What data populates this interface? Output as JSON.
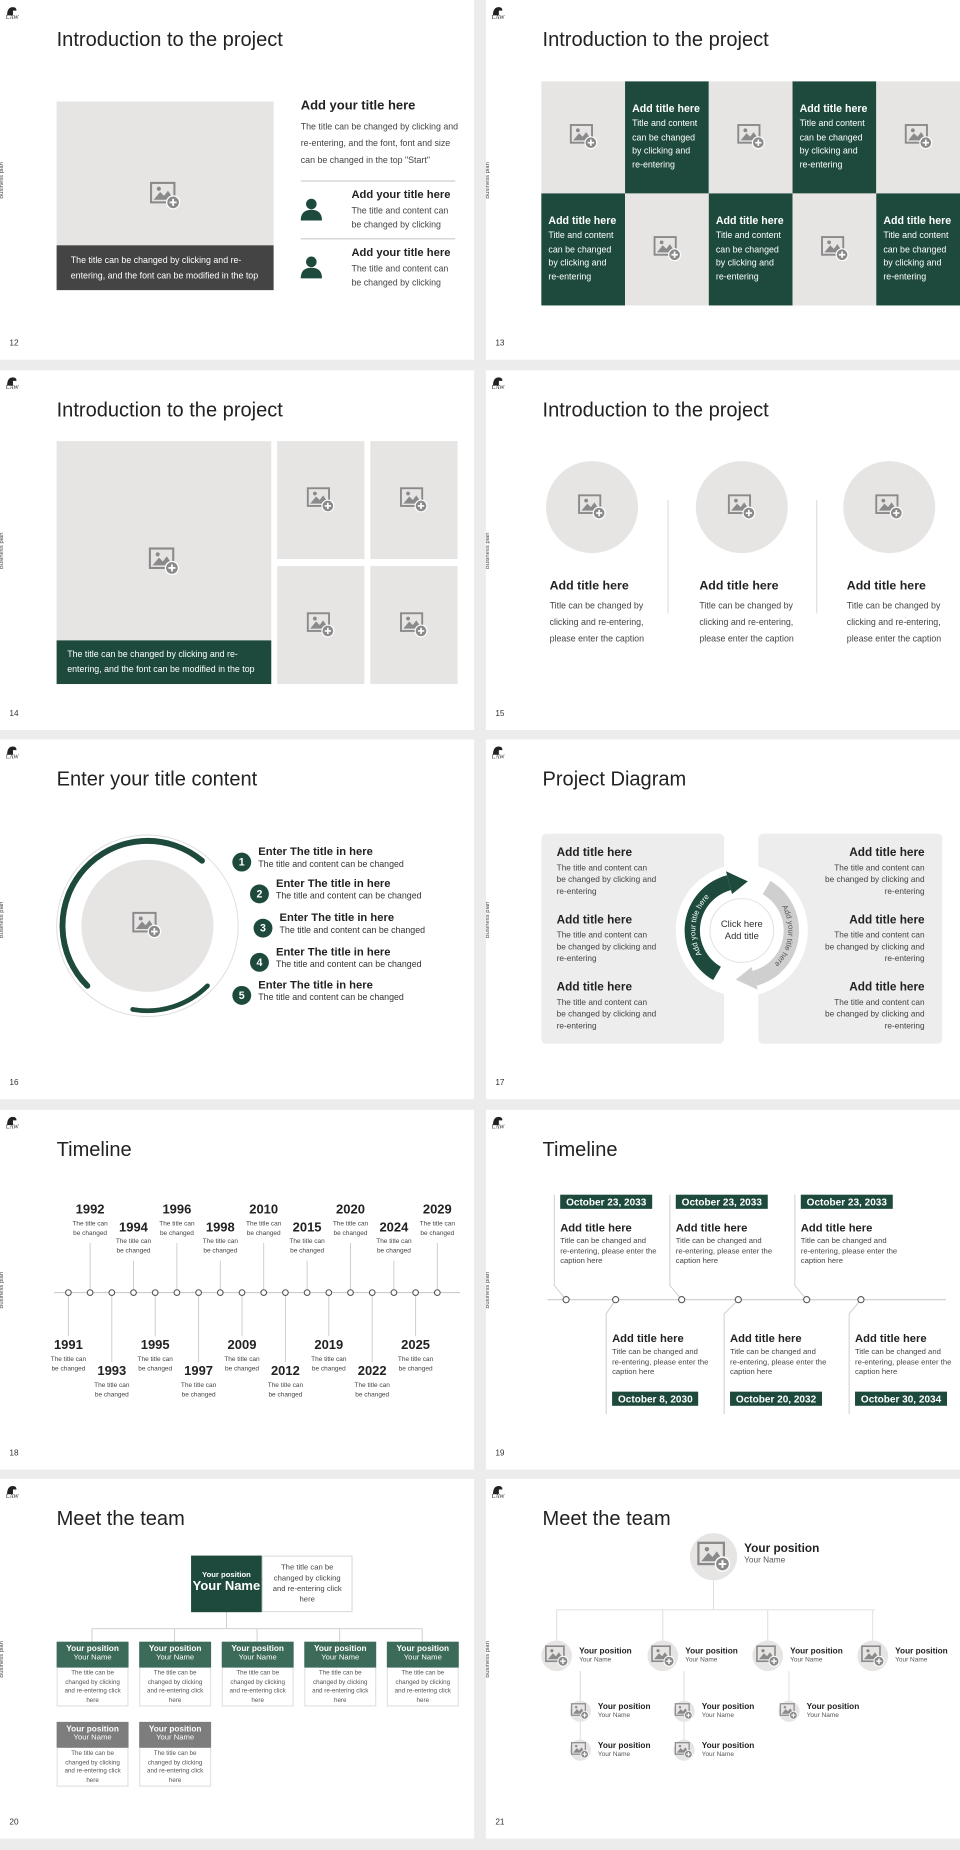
{
  "logo": "LAW",
  "side_label": "Business plan",
  "slides": [
    {
      "type": "intro_split",
      "number": "12",
      "title": "Introduction to the project",
      "caption": "The title can be changed by clicking and re-entering, and the font can be modified in the top",
      "heading": "Add your title here",
      "text": "The title can be changed by clicking and re-entering, and the font, font and size can be changed in the top \"Start\"",
      "items": [
        {
          "title": "Add your title here",
          "text": "The title and content can be changed by clicking"
        },
        {
          "title": "Add your title here",
          "text": "The title and content can be changed by clicking"
        }
      ]
    },
    {
      "type": "tiles",
      "number": "13",
      "title": "Introduction to the project",
      "tiles": [
        {
          "title": "Add title here",
          "text": "Title and content can be changed by clicking and re-entering"
        },
        {
          "title": "Add title here",
          "text": "Title and content can be changed by clicking and re-entering"
        },
        {
          "title": "Add title here",
          "text": "Title and content can be changed by clicking and re-entering"
        },
        {
          "title": "Add title here",
          "text": "Title and content can be changed by clicking and re-entering"
        },
        {
          "title": "Add title here",
          "text": "Title and content can be changed by clicking and re-entering"
        }
      ]
    },
    {
      "type": "gallery",
      "number": "14",
      "title": "Introduction to the project",
      "caption": "The title can be changed by clicking and re-entering, and the font can be modified in the top"
    },
    {
      "type": "circles",
      "number": "15",
      "title": "Introduction to the project",
      "columns": [
        {
          "title": "Add title here",
          "text": "Title can be changed by clicking and re-entering, please enter the caption"
        },
        {
          "title": "Add title here",
          "text": "Title can be changed by clicking and re-entering, please enter the caption"
        },
        {
          "title": "Add title here",
          "text": "Title can be changed by clicking and re-entering, please enter the caption"
        }
      ]
    },
    {
      "type": "numbered",
      "number": "16",
      "title": "Enter your title content",
      "items": [
        {
          "n": "1",
          "title": "Enter The title in here",
          "text": "The title and content can be changed"
        },
        {
          "n": "2",
          "title": "Enter The title in here",
          "text": "The title and content can be changed"
        },
        {
          "n": "3",
          "title": "Enter The title in here",
          "text": "The title and content can be changed"
        },
        {
          "n": "4",
          "title": "Enter The title in here",
          "text": "The title and content can be changed"
        },
        {
          "n": "5",
          "title": "Enter The title in here",
          "text": "The title and content can be changed"
        }
      ]
    },
    {
      "type": "cycle",
      "number": "17",
      "title": "Project Diagram",
      "center": "Click here Add title",
      "arc_left": "Add your title here",
      "arc_right": "Add your title here",
      "left": [
        {
          "title": "Add title here",
          "text": "The title and content can be changed by clicking and re-entering"
        },
        {
          "title": "Add title here",
          "text": "The title and content can be changed by clicking and re-entering"
        },
        {
          "title": "Add title here",
          "text": "The title and content can be changed by clicking and re-entering"
        }
      ],
      "right": [
        {
          "title": "Add title here",
          "text": "The title and content can be changed by clicking and re-entering"
        },
        {
          "title": "Add title here",
          "text": "The title and content can be changed by clicking and re-entering"
        },
        {
          "title": "Add title here",
          "text": "The title and content can be changed by clicking and re-entering"
        }
      ]
    },
    {
      "type": "timeline",
      "number": "18",
      "title": "Timeline",
      "events": [
        {
          "year": "1991",
          "text": "The title can be changed"
        },
        {
          "year": "1992",
          "text": "The title can be changed"
        },
        {
          "year": "1993",
          "text": "The title can be changed"
        },
        {
          "year": "1994",
          "text": "The title can be changed"
        },
        {
          "year": "1995",
          "text": "The title can be changed"
        },
        {
          "year": "1996",
          "text": "The title can be changed"
        },
        {
          "year": "1997",
          "text": "The title can be changed"
        },
        {
          "year": "1998",
          "text": "The title can be changed"
        },
        {
          "year": "2009",
          "text": "The title can be changed"
        },
        {
          "year": "2010",
          "text": "The title can be changed"
        },
        {
          "year": "2012",
          "text": "The title can be changed"
        },
        {
          "year": "2015",
          "text": "The title can be changed"
        },
        {
          "year": "2019",
          "text": "The title can be changed"
        },
        {
          "year": "2020",
          "text": "The title can be changed"
        },
        {
          "year": "2022",
          "text": "The title can be changed"
        },
        {
          "year": "2024",
          "text": "The title can be changed"
        },
        {
          "year": "2025",
          "text": "The title can be changed"
        },
        {
          "year": "2029",
          "text": "The title can be changed"
        }
      ]
    },
    {
      "type": "timeline2",
      "number": "19",
      "title": "Timeline",
      "top": [
        {
          "date": "October 23, 2033",
          "title": "Add title here",
          "text": "Title can be changed and re-entering, please enter the caption here"
        },
        {
          "date": "October 23, 2033",
          "title": "Add title here",
          "text": "Title can be changed and re-entering, please enter the caption here"
        },
        {
          "date": "October 23, 2033",
          "title": "Add title here",
          "text": "Title can be changed and re-entering, please enter the caption here"
        }
      ],
      "bottom": [
        {
          "date": "October 8, 2030",
          "title": "Add title here",
          "text": "Title can be changed and re-entering, please enter the caption here"
        },
        {
          "date": "October 20, 2032",
          "title": "Add title here",
          "text": "Title can be changed and re-entering, please enter the caption here"
        },
        {
          "date": "October 30, 2034",
          "title": "Add title here",
          "text": "Title can be changed and re-entering, please enter the caption here"
        }
      ]
    },
    {
      "type": "org",
      "number": "20",
      "title": "Meet the team",
      "lead": {
        "position": "Your position",
        "name": "Your Name",
        "text": "The title can be changed by clicking and re-entering click here"
      },
      "members": [
        {
          "position": "Your position",
          "name": "Your Name",
          "text": "The title can be changed by clicking and re-entering click here"
        },
        {
          "position": "Your position",
          "name": "Your Name",
          "text": "The title can be changed by clicking and re-entering click here"
        },
        {
          "position": "Your position",
          "name": "Your Name",
          "text": "The title can be changed by clicking and re-entering click here"
        },
        {
          "position": "Your position",
          "name": "Your Name",
          "text": "The title can be changed by clicking and re-entering click here"
        },
        {
          "position": "Your position",
          "name": "Your Name",
          "text": "The title can be changed by clicking and re-entering click here"
        },
        {
          "position": "Your position",
          "name": "Your Name",
          "text": "The title can be changed by clicking and re-entering click here"
        },
        {
          "position": "Your position",
          "name": "Your Name",
          "text": "The title can be changed by clicking and re-entering click here"
        }
      ]
    },
    {
      "type": "org2",
      "number": "21",
      "title": "Meet the team",
      "top": {
        "position": "Your position",
        "name": "Your Name"
      },
      "level1": [
        {
          "position": "Your position",
          "name": "Your Name"
        },
        {
          "position": "Your position",
          "name": "Your Name"
        },
        {
          "position": "Your position",
          "name": "Your Name"
        },
        {
          "position": "Your position",
          "name": "Your Name"
        }
      ],
      "level2": [
        {
          "position": "Your position",
          "name": "Your Name"
        },
        {
          "position": "Your position",
          "name": "Your Name"
        },
        {
          "position": "Your position",
          "name": "Your Name"
        },
        {
          "position": "Your position",
          "name": "Your Name"
        },
        {
          "position": "Your position",
          "name": "Your Name"
        }
      ]
    }
  ]
}
